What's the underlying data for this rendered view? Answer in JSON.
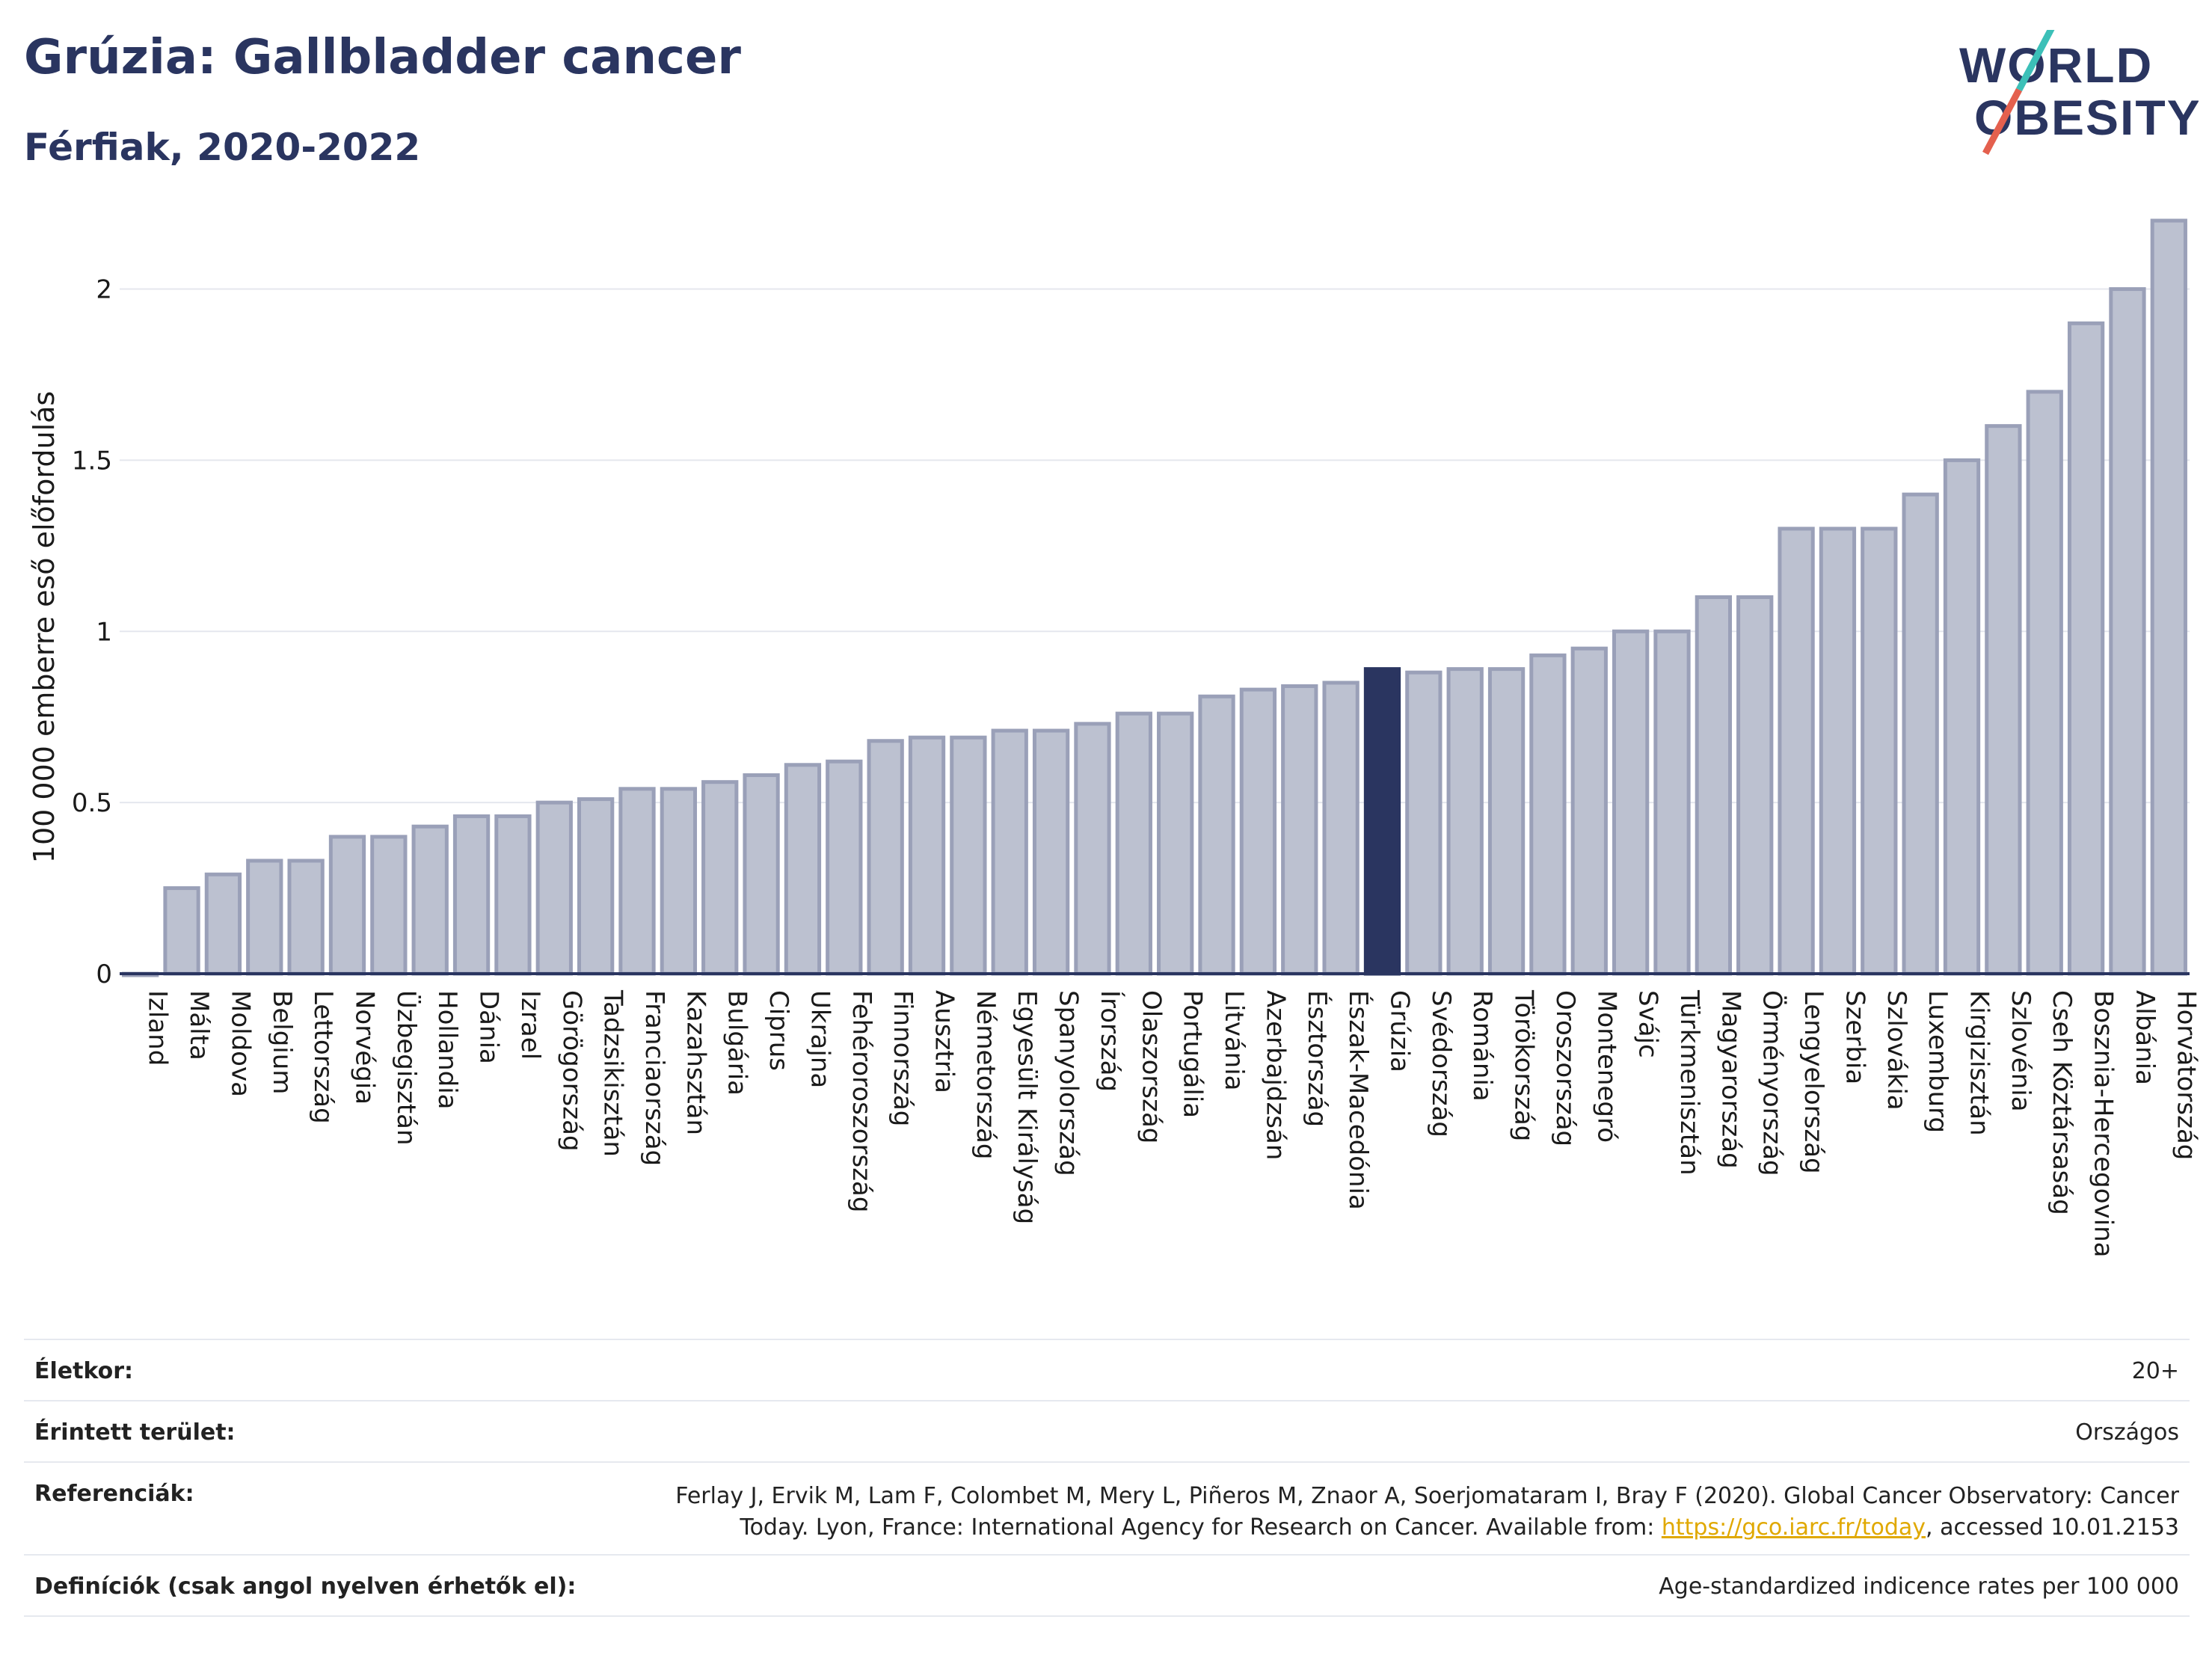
{
  "header": {
    "title": "Grúzia: Gallbladder cancer",
    "subtitle": "Férfiak, 2020-2022"
  },
  "logo": {
    "line1": "WORLD",
    "line2": "OBESITY"
  },
  "colors": {
    "bar": "#bcc1d0",
    "bar_edge": "#9aa0b8",
    "highlight": "#2a3560",
    "grid": "#e5e7ee"
  },
  "chart_data": {
    "type": "bar",
    "ylabel": "100 000 emberre eső előfordulás",
    "xlabel": "",
    "ylim": [
      0,
      2.2
    ],
    "yticks": [
      0,
      0.5,
      1,
      1.5,
      2
    ],
    "ytick_labels": [
      "0",
      "0.5",
      "1",
      "1.5",
      "2"
    ],
    "highlight": "Grúzia",
    "categories": [
      "Izland",
      "Málta",
      "Moldova",
      "Belgium",
      "Lettország",
      "Norvégia",
      "Üzbegisztán",
      "Hollandia",
      "Dánia",
      "Izrael",
      "Görögország",
      "Tadzsikisztán",
      "Franciaország",
      "Kazahsztán",
      "Bulgária",
      "Ciprus",
      "Ukrajna",
      "Fehéroroszország",
      "Finnország",
      "Ausztria",
      "Németország",
      "Egyesült Királyság",
      "Spanyolország",
      "Írország",
      "Olaszország",
      "Portugália",
      "Litvánia",
      "Azerbajdzsán",
      "Észtország",
      "Észak-Macedónia",
      "Grúzia",
      "Svédország",
      "Románia",
      "Törökország",
      "Oroszország",
      "Montenegró",
      "Svájc",
      "Türkmenisztán",
      "Magyarország",
      "Örményország",
      "Lengyelország",
      "Szerbia",
      "Szlovákia",
      "Luxemburg",
      "Kirgizisztán",
      "Szlovénia",
      "Cseh Köztársaság",
      "Bosznia-Hercegovina",
      "Albánia",
      "Horvátország"
    ],
    "values": [
      0.0,
      0.25,
      0.29,
      0.33,
      0.33,
      0.4,
      0.4,
      0.43,
      0.46,
      0.46,
      0.5,
      0.51,
      0.54,
      0.54,
      0.56,
      0.58,
      0.61,
      0.62,
      0.68,
      0.69,
      0.69,
      0.71,
      0.71,
      0.73,
      0.76,
      0.76,
      0.81,
      0.83,
      0.84,
      0.85,
      0.89,
      0.88,
      0.89,
      0.89,
      0.93,
      0.95,
      1.0,
      1.0,
      1.1,
      1.1,
      1.3,
      1.3,
      1.3,
      1.4,
      1.5,
      1.6,
      1.7,
      1.9,
      2.0,
      2.2
    ]
  },
  "info": {
    "age_label": "Életkor:",
    "age_value": "20+",
    "area_label": "Érintett terület:",
    "area_value": "Országos",
    "ref_label": "Referenciák:",
    "ref_line1": "Ferlay J, Ervik M, Lam F, Colombet M, Mery L, Piñeros M, Znaor A, Soerjomataram I, Bray F (2020). Global Cancer Observatory: Cancer",
    "ref_line2_pre": "Today. Lyon, France: International Agency for Research on Cancer. Available from: ",
    "ref_link": "https://gco.iarc.fr/today",
    "ref_line2_post": ", accessed 10.01.2153",
    "def_label": "Definíciók (csak angol nyelven érhetők el):",
    "def_value": "Age-standardized indicence rates per 100 000"
  }
}
